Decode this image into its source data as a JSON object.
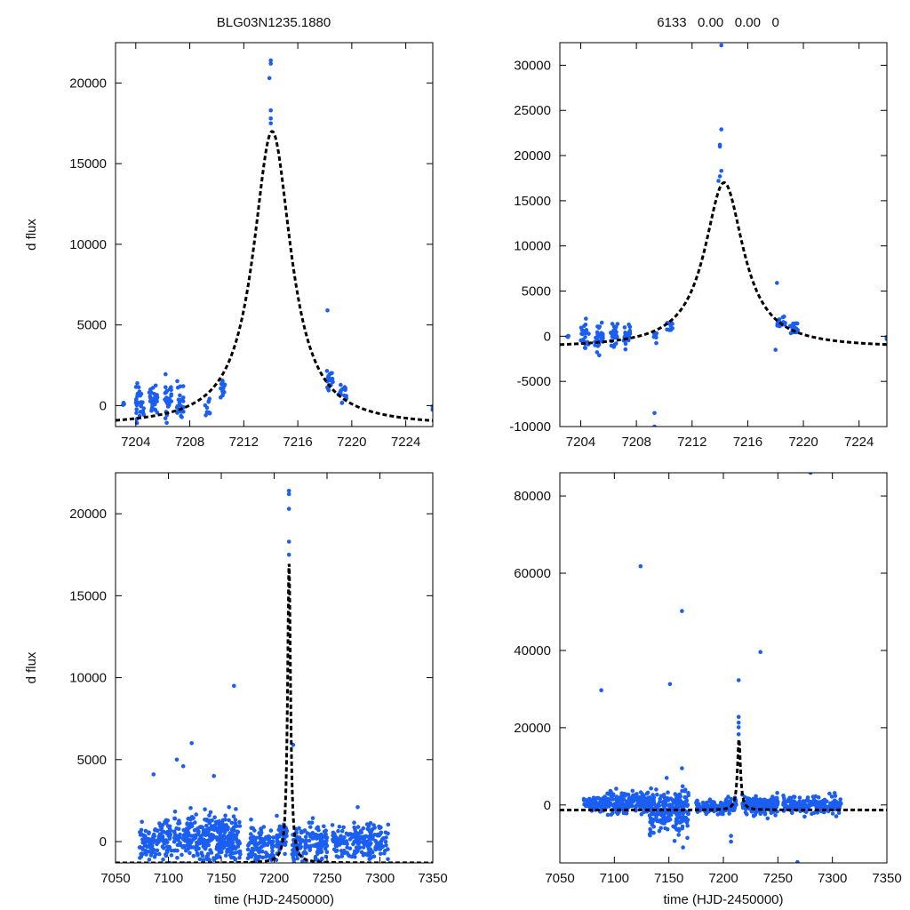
{
  "header": {
    "left_title": "BLG03N1235.1880",
    "right_title": "6133   0.00   0.00   0"
  },
  "colors": {
    "points": "#1a5ef2",
    "model": "#000000"
  },
  "chart_data": [
    {
      "id": "top-left",
      "type": "scatter",
      "title": "BLG03N1235.1880",
      "xlabel": "",
      "ylabel": "d flux",
      "xlim": [
        7202.5,
        7226
      ],
      "ylim": [
        -1300,
        22500
      ],
      "xticks": [
        7204,
        7208,
        7212,
        7216,
        7220,
        7224
      ],
      "yticks": [
        0,
        5000,
        10000,
        15000,
        20000
      ],
      "model": {
        "t0": 7214.1,
        "peak": 17000,
        "base": -1300,
        "width": 1.7
      },
      "series": [
        {
          "name": "data",
          "groups": [
            {
              "t": 7203.1,
              "n": 4,
              "spread": 0.08,
              "mean": 100,
              "sd": 300
            },
            {
              "t": 7204.3,
              "n": 30,
              "spread": 0.3,
              "mean": 300,
              "sd": 550
            },
            {
              "t": 7205.3,
              "n": 35,
              "spread": 0.3,
              "mean": 300,
              "sd": 550
            },
            {
              "t": 7206.4,
              "n": 28,
              "spread": 0.25,
              "mean": 300,
              "sd": 500
            },
            {
              "t": 7207.3,
              "n": 25,
              "spread": 0.25,
              "mean": 300,
              "sd": 500
            },
            {
              "t": 7209.3,
              "n": 10,
              "spread": 0.2,
              "mean": 150,
              "sd": 400
            },
            {
              "t": 7210.4,
              "n": 14,
              "spread": 0.2,
              "mean": 1000,
              "sd": 350
            },
            {
              "t": 7218.4,
              "n": 20,
              "spread": 0.3,
              "mean": 1500,
              "sd": 300
            },
            {
              "t": 7219.3,
              "n": 20,
              "spread": 0.3,
              "mean": 800,
              "sd": 300
            },
            {
              "t": 7226,
              "n": 3,
              "spread": 0.02,
              "mean": -200,
              "sd": 200
            }
          ],
          "outliers": [
            [
              7214.0,
              21400
            ],
            [
              7214.0,
              21200
            ],
            [
              7213.9,
              20300
            ],
            [
              7214.0,
              18300
            ],
            [
              7214.0,
              17800
            ],
            [
              7214.0,
              17500
            ],
            [
              7218.2,
              5900
            ]
          ]
        }
      ]
    },
    {
      "id": "top-right",
      "type": "scatter",
      "title": "6133   0.00   0.00   0",
      "xlabel": "",
      "ylabel": "",
      "xlim": [
        7202.5,
        7226
      ],
      "ylim": [
        -10000,
        32500
      ],
      "xticks": [
        7204,
        7208,
        7212,
        7216,
        7220,
        7224
      ],
      "yticks": [
        -10000,
        -5000,
        0,
        5000,
        10000,
        15000,
        20000,
        25000,
        30000
      ],
      "model": {
        "t0": 7214.3,
        "peak": 17000,
        "base": -1300,
        "width": 1.7
      },
      "series": [
        {
          "name": "data",
          "groups": [
            {
              "t": 7203.1,
              "n": 4,
              "spread": 0.08,
              "mean": 0,
              "sd": 300
            },
            {
              "t": 7204.3,
              "n": 30,
              "spread": 0.3,
              "mean": -100,
              "sd": 800
            },
            {
              "t": 7205.3,
              "n": 35,
              "spread": 0.3,
              "mean": 0,
              "sd": 700
            },
            {
              "t": 7206.4,
              "n": 28,
              "spread": 0.25,
              "mean": 100,
              "sd": 600
            },
            {
              "t": 7207.3,
              "n": 25,
              "spread": 0.25,
              "mean": 200,
              "sd": 600
            },
            {
              "t": 7209.3,
              "n": 8,
              "spread": 0.15,
              "mean": 0,
              "sd": 400
            },
            {
              "t": 7210.4,
              "n": 14,
              "spread": 0.2,
              "mean": 1000,
              "sd": 450
            },
            {
              "t": 7218.4,
              "n": 20,
              "spread": 0.3,
              "mean": 1500,
              "sd": 400
            },
            {
              "t": 7219.3,
              "n": 20,
              "spread": 0.3,
              "mean": 800,
              "sd": 400
            },
            {
              "t": 7226,
              "n": 3,
              "spread": 0.02,
              "mean": -200,
              "sd": 250
            }
          ],
          "outliers": [
            [
              7214.1,
              32200
            ],
            [
              7214.1,
              22900
            ],
            [
              7214.0,
              21200
            ],
            [
              7214.0,
              21000
            ],
            [
              7214.1,
              18300
            ],
            [
              7214.0,
              17700
            ],
            [
              7213.9,
              17200
            ],
            [
              7218.1,
              5900
            ],
            [
              7218.0,
              -1500
            ],
            [
              7209.3,
              -8500
            ],
            [
              7209.3,
              -10000
            ]
          ]
        }
      ]
    },
    {
      "id": "bottom-left",
      "type": "scatter",
      "title": "",
      "xlabel": "time (HJD-2450000)",
      "ylabel": "d flux",
      "xlim": [
        7050,
        7350
      ],
      "ylim": [
        -1300,
        22500
      ],
      "xticks": [
        7050,
        7100,
        7150,
        7200,
        7250,
        7300,
        7350
      ],
      "yticks": [
        0,
        5000,
        10000,
        15000,
        20000
      ],
      "model": {
        "t0": 7214.1,
        "peak": 17000,
        "base": -1300,
        "width": 1.7
      },
      "series": [
        {
          "name": "data",
          "ranges": [
            {
              "t1": 7072,
              "t2": 7093,
              "n": 90,
              "mean": 0,
              "sd": 500
            },
            {
              "t1": 7093,
              "t2": 7132,
              "n": 170,
              "mean": 200,
              "sd": 700
            },
            {
              "t1": 7132,
              "t2": 7168,
              "n": 230,
              "mean": 200,
              "sd": 800
            },
            {
              "t1": 7175,
              "t2": 7200,
              "n": 110,
              "mean": -300,
              "sd": 550
            },
            {
              "t1": 7202,
              "t2": 7212,
              "n": 50,
              "mean": 300,
              "sd": 550
            },
            {
              "t1": 7217,
              "t2": 7250,
              "n": 150,
              "mean": -100,
              "sd": 600
            },
            {
              "t1": 7255,
              "t2": 7308,
              "n": 200,
              "mean": -100,
              "sd": 550
            }
          ],
          "outliers": [
            [
              7214,
              21400
            ],
            [
              7214,
              21200
            ],
            [
              7214,
              20300
            ],
            [
              7214,
              18300
            ],
            [
              7214,
              17500
            ],
            [
              7162,
              9500
            ],
            [
              7122,
              6000
            ],
            [
              7108,
              5000
            ],
            [
              7114,
              4600
            ],
            [
              7086,
              4100
            ],
            [
              7143,
              4000
            ],
            [
              7218,
              5900
            ],
            [
              7279,
              2100
            ]
          ]
        }
      ]
    },
    {
      "id": "bottom-right",
      "type": "scatter",
      "title": "",
      "xlabel": "time (HJD-2450000)",
      "ylabel": "",
      "xlim": [
        7050,
        7350
      ],
      "ylim": [
        -15000,
        86000
      ],
      "xticks": [
        7050,
        7100,
        7150,
        7200,
        7250,
        7300,
        7350
      ],
      "yticks": [
        0,
        20000,
        40000,
        60000,
        80000
      ],
      "model": {
        "t0": 7214.3,
        "peak": 17000,
        "base": -1300,
        "width": 1.7
      },
      "series": [
        {
          "name": "data",
          "ranges": [
            {
              "t1": 7072,
              "t2": 7093,
              "n": 90,
              "mean": 0,
              "sd": 900
            },
            {
              "t1": 7093,
              "t2": 7132,
              "n": 170,
              "mean": 500,
              "sd": 1400
            },
            {
              "t1": 7132,
              "t2": 7168,
              "n": 230,
              "mean": -1500,
              "sd": 2600
            },
            {
              "t1": 7175,
              "t2": 7200,
              "n": 110,
              "mean": -500,
              "sd": 800
            },
            {
              "t1": 7202,
              "t2": 7212,
              "n": 50,
              "mean": 0,
              "sd": 900
            },
            {
              "t1": 7217,
              "t2": 7250,
              "n": 150,
              "mean": -300,
              "sd": 1100
            },
            {
              "t1": 7255,
              "t2": 7308,
              "n": 200,
              "mean": 0,
              "sd": 1100
            }
          ],
          "outliers": [
            [
              7280,
              86000
            ],
            [
              7124,
              61800
            ],
            [
              7162,
              50200
            ],
            [
              7234,
              39600
            ],
            [
              7151,
              31300
            ],
            [
              7088,
              29700
            ],
            [
              7214,
              32300
            ],
            [
              7214,
              22800
            ],
            [
              7214,
              21300
            ],
            [
              7214,
              20100
            ],
            [
              7214,
              18300
            ],
            [
              7162,
              9500
            ],
            [
              7268,
              -14800
            ],
            [
              7207,
              -8000
            ],
            [
              7207,
              -9500
            ],
            [
              7163,
              -11000
            ]
          ]
        }
      ]
    }
  ]
}
